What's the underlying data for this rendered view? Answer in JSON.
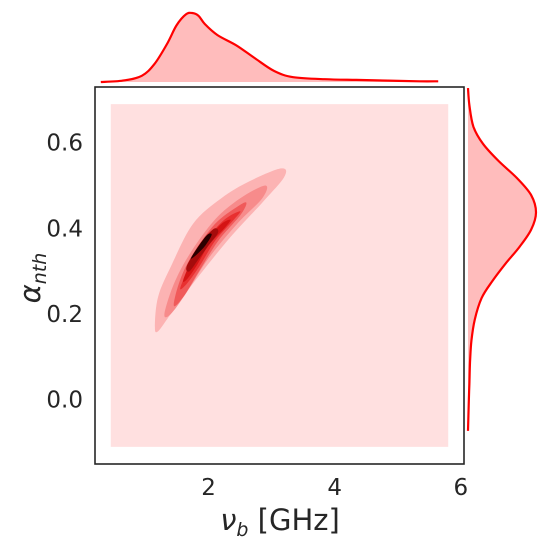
{
  "chart_data": {
    "type": "kde-joint",
    "xlabel": "ν_b [GHz]",
    "ylabel": "α_nth",
    "xlabel_main": "ν",
    "xlabel_sub": "b",
    "xlabel_unit": " [GHz]",
    "ylabel_main": "α",
    "ylabel_sub": "nth",
    "xlim": [
      0.2,
      6.05
    ],
    "ylim": [
      -0.15,
      0.73
    ],
    "xticks": [
      2,
      4,
      6
    ],
    "xtick_labels": [
      "2",
      "4",
      "6"
    ],
    "yticks": [
      0.0,
      0.2,
      0.4,
      0.6
    ],
    "ytick_labels": [
      "0.0",
      "0.2",
      "0.4",
      "0.6"
    ],
    "grid": false,
    "background_fill_region": {
      "x": [
        0.45,
        5.8
      ],
      "y": [
        -0.11,
        0.69
      ]
    },
    "density_center": {
      "x": 1.9,
      "y": 0.37
    },
    "contour_levels": [
      {
        "level": 1,
        "points": [
          [
            1.15,
            0.17
          ],
          [
            1.2,
            0.24
          ],
          [
            1.4,
            0.31
          ],
          [
            1.75,
            0.41
          ],
          [
            2.2,
            0.47
          ],
          [
            2.65,
            0.51
          ],
          [
            3.15,
            0.54
          ],
          [
            3.2,
            0.52
          ],
          [
            2.85,
            0.46
          ],
          [
            2.35,
            0.38
          ],
          [
            1.8,
            0.28
          ],
          [
            1.4,
            0.2
          ],
          [
            1.2,
            0.16
          ]
        ]
      },
      {
        "level": 2,
        "points": [
          [
            1.3,
            0.2
          ],
          [
            1.45,
            0.27
          ],
          [
            1.7,
            0.34
          ],
          [
            2.1,
            0.42
          ],
          [
            2.5,
            0.47
          ],
          [
            2.9,
            0.5
          ],
          [
            2.85,
            0.47
          ],
          [
            2.45,
            0.41
          ],
          [
            2.0,
            0.33
          ],
          [
            1.65,
            0.25
          ],
          [
            1.4,
            0.2
          ]
        ]
      },
      {
        "level": 3,
        "points": [
          [
            1.45,
            0.22
          ],
          [
            1.55,
            0.28
          ],
          [
            1.75,
            0.34
          ],
          [
            2.1,
            0.41
          ],
          [
            2.45,
            0.45
          ],
          [
            2.6,
            0.46
          ],
          [
            2.5,
            0.43
          ],
          [
            2.15,
            0.37
          ],
          [
            1.85,
            0.3
          ],
          [
            1.6,
            0.24
          ]
        ]
      },
      {
        "level": 4,
        "points": [
          [
            1.55,
            0.26
          ],
          [
            1.7,
            0.31
          ],
          [
            1.95,
            0.37
          ],
          [
            2.25,
            0.42
          ],
          [
            2.5,
            0.44
          ],
          [
            2.4,
            0.42
          ],
          [
            2.1,
            0.37
          ],
          [
            1.85,
            0.31
          ],
          [
            1.65,
            0.27
          ]
        ]
      },
      {
        "level": 5,
        "points": [
          [
            1.6,
            0.28
          ],
          [
            1.75,
            0.33
          ],
          [
            1.95,
            0.37
          ],
          [
            2.2,
            0.41
          ],
          [
            2.35,
            0.42
          ],
          [
            2.25,
            0.4
          ],
          [
            2.0,
            0.36
          ],
          [
            1.8,
            0.31
          ],
          [
            1.65,
            0.28
          ]
        ]
      },
      {
        "level": 6,
        "points": [
          [
            1.65,
            0.31
          ],
          [
            1.8,
            0.35
          ],
          [
            1.95,
            0.38
          ],
          [
            2.1,
            0.4
          ],
          [
            2.15,
            0.39
          ],
          [
            2.0,
            0.36
          ],
          [
            1.85,
            0.33
          ],
          [
            1.7,
            0.3
          ]
        ]
      },
      {
        "level": 7,
        "points": [
          [
            1.72,
            0.33
          ],
          [
            1.85,
            0.36
          ],
          [
            1.98,
            0.385
          ],
          [
            2.05,
            0.385
          ],
          [
            1.95,
            0.36
          ],
          [
            1.82,
            0.34
          ]
        ]
      }
    ],
    "marginal_x": {
      "x": [
        0.45,
        0.8,
        1.1,
        1.3,
        1.5,
        1.65,
        1.8,
        1.9,
        2.0,
        2.1,
        2.3,
        2.6,
        2.9,
        3.2,
        3.5,
        4.0,
        4.5,
        5.0,
        5.5,
        5.8
      ],
      "density": [
        0.0,
        0.02,
        0.09,
        0.26,
        0.55,
        0.82,
        0.98,
        1.0,
        0.96,
        0.84,
        0.68,
        0.53,
        0.34,
        0.16,
        0.07,
        0.04,
        0.03,
        0.02,
        0.01,
        0.01
      ]
    },
    "marginal_y": {
      "y": [
        -0.11,
        -0.05,
        0.0,
        0.05,
        0.1,
        0.15,
        0.2,
        0.24,
        0.28,
        0.32,
        0.36,
        0.4,
        0.44,
        0.48,
        0.52,
        0.56,
        0.6,
        0.65,
        0.69
      ],
      "density": [
        0.0,
        0.01,
        0.02,
        0.03,
        0.05,
        0.1,
        0.2,
        0.36,
        0.55,
        0.76,
        0.93,
        1.0,
        0.93,
        0.72,
        0.45,
        0.22,
        0.08,
        0.02,
        0.0
      ]
    },
    "colors": {
      "line": "#ff0000",
      "fill": "#ffbcbc",
      "background": "#ffe0e0",
      "contours": [
        "#fcb3b3",
        "#f78b8b",
        "#f05a5a",
        "#e83030",
        "#d41414",
        "#a50c0c",
        "#2a0000"
      ]
    }
  }
}
